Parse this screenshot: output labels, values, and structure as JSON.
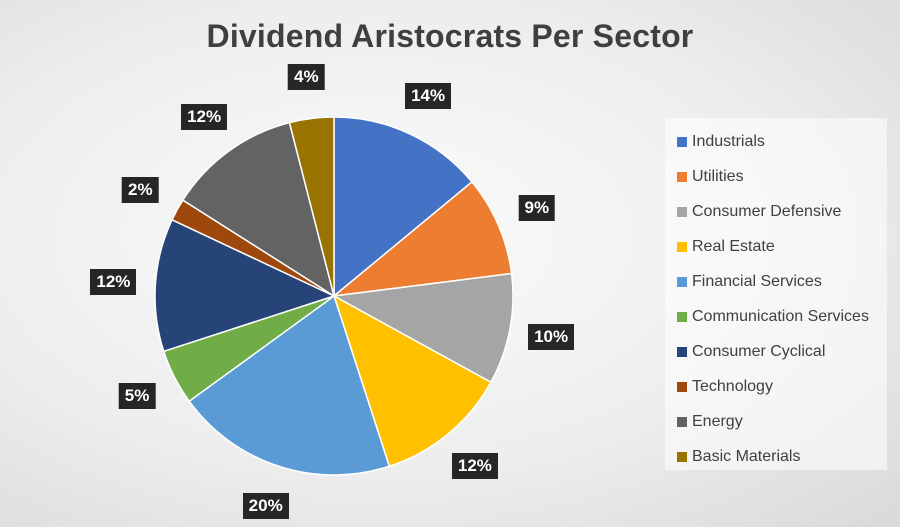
{
  "chart_data": {
    "type": "pie",
    "title": "Dividend Aristocrats Per Sector",
    "legend_position": "right",
    "slices": [
      {
        "label": "Industrials",
        "value": 14,
        "display": "14%",
        "color": "#4472C4"
      },
      {
        "label": "Utilities",
        "value": 9,
        "display": "9%",
        "color": "#ED7D31"
      },
      {
        "label": "Consumer Defensive",
        "value": 10,
        "display": "10%",
        "color": "#A5A5A5"
      },
      {
        "label": "Real Estate",
        "value": 12,
        "display": "12%",
        "color": "#FFC000"
      },
      {
        "label": "Financial Services",
        "value": 20,
        "display": "20%",
        "color": "#5B9BD5"
      },
      {
        "label": "Communication Services",
        "value": 5,
        "display": "5%",
        "color": "#70AD47"
      },
      {
        "label": "Consumer Cyclical",
        "value": 12,
        "display": "12%",
        "color": "#264478"
      },
      {
        "label": "Technology",
        "value": 2,
        "display": "2%",
        "color": "#9E480E"
      },
      {
        "label": "Energy",
        "value": 12,
        "display": "12%",
        "color": "#636363"
      },
      {
        "label": "Basic Materials",
        "value": 4,
        "display": "4%",
        "color": "#997300"
      }
    ]
  }
}
